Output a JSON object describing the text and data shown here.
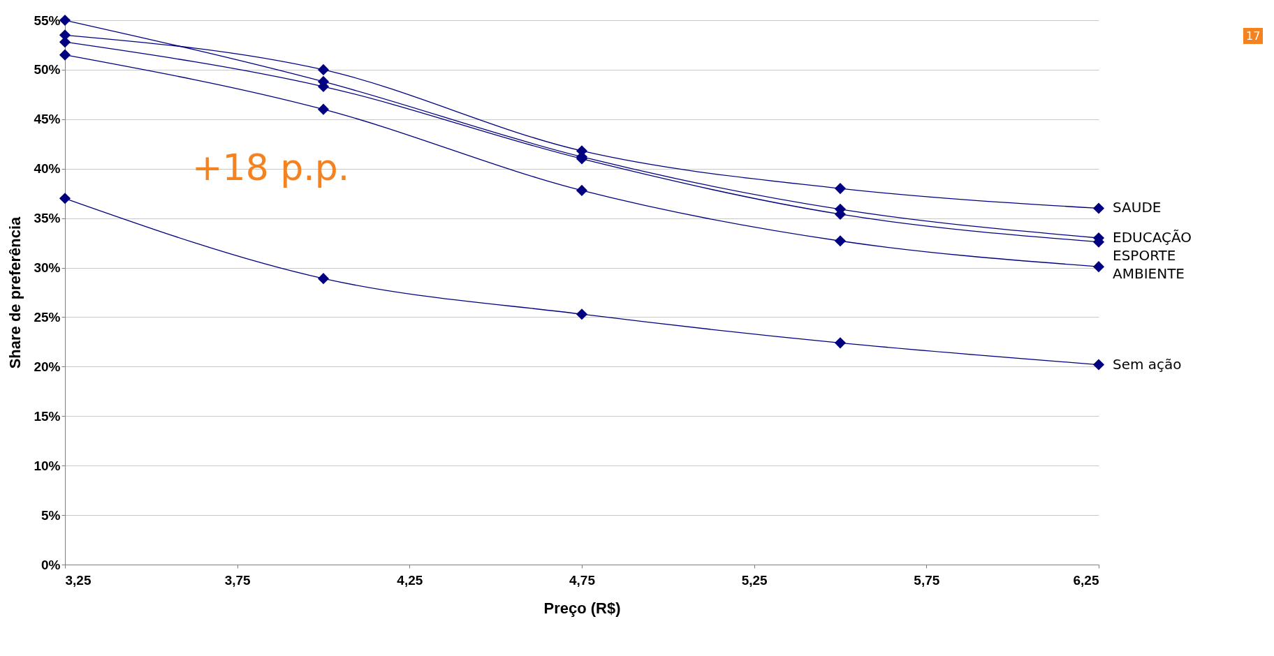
{
  "chart_data": {
    "type": "line",
    "xlabel": "Preço (R$)",
    "ylabel": "Share de preferência",
    "x": [
      3.25,
      4.0,
      4.75,
      5.5,
      6.25
    ],
    "series": [
      {
        "name": "SAUDE",
        "color": "#000080",
        "values": [
          53.5,
          50.0,
          41.8,
          38.0,
          36.0
        ]
      },
      {
        "name": "EDUCAÇÃO",
        "color": "#000080",
        "values": [
          55.0,
          48.8,
          41.2,
          35.9,
          33.0
        ]
      },
      {
        "name": "ESPORTE",
        "color": "#000080",
        "values": [
          52.8,
          48.3,
          41.0,
          35.4,
          32.6
        ]
      },
      {
        "name": "AMBIENTE",
        "color": "#000080",
        "values": [
          51.5,
          46.0,
          37.8,
          32.7,
          30.1
        ]
      },
      {
        "name": "Sem ação",
        "color": "#000080",
        "values": [
          37.0,
          28.9,
          25.3,
          22.4,
          20.2
        ]
      }
    ],
    "xlim": [
      3.25,
      6.25
    ],
    "xticks": [
      {
        "value": 3.25,
        "label": "3,25"
      },
      {
        "value": 3.75,
        "label": "3,75"
      },
      {
        "value": 4.25,
        "label": "4,25"
      },
      {
        "value": 4.75,
        "label": "4,75"
      },
      {
        "value": 5.25,
        "label": "5,25"
      },
      {
        "value": 5.75,
        "label": "5,75"
      },
      {
        "value": 6.25,
        "label": "6,25"
      }
    ],
    "ylim": [
      0,
      55
    ],
    "yticks": [
      {
        "value": 0,
        "label": "0%"
      },
      {
        "value": 5,
        "label": "5%"
      },
      {
        "value": 10,
        "label": "10%"
      },
      {
        "value": 15,
        "label": "15%"
      },
      {
        "value": 20,
        "label": "20%"
      },
      {
        "value": 25,
        "label": "25%"
      },
      {
        "value": 30,
        "label": "30%"
      },
      {
        "value": 35,
        "label": "35%"
      },
      {
        "value": 40,
        "label": "40%"
      },
      {
        "value": 45,
        "label": "45%"
      },
      {
        "value": 50,
        "label": "50%"
      },
      {
        "value": 55,
        "label": "55%"
      }
    ],
    "grid": "y",
    "legend": false,
    "marker": "diamond",
    "line_style": "solid",
    "annotations": [
      "+18 p.p.",
      "17"
    ]
  }
}
